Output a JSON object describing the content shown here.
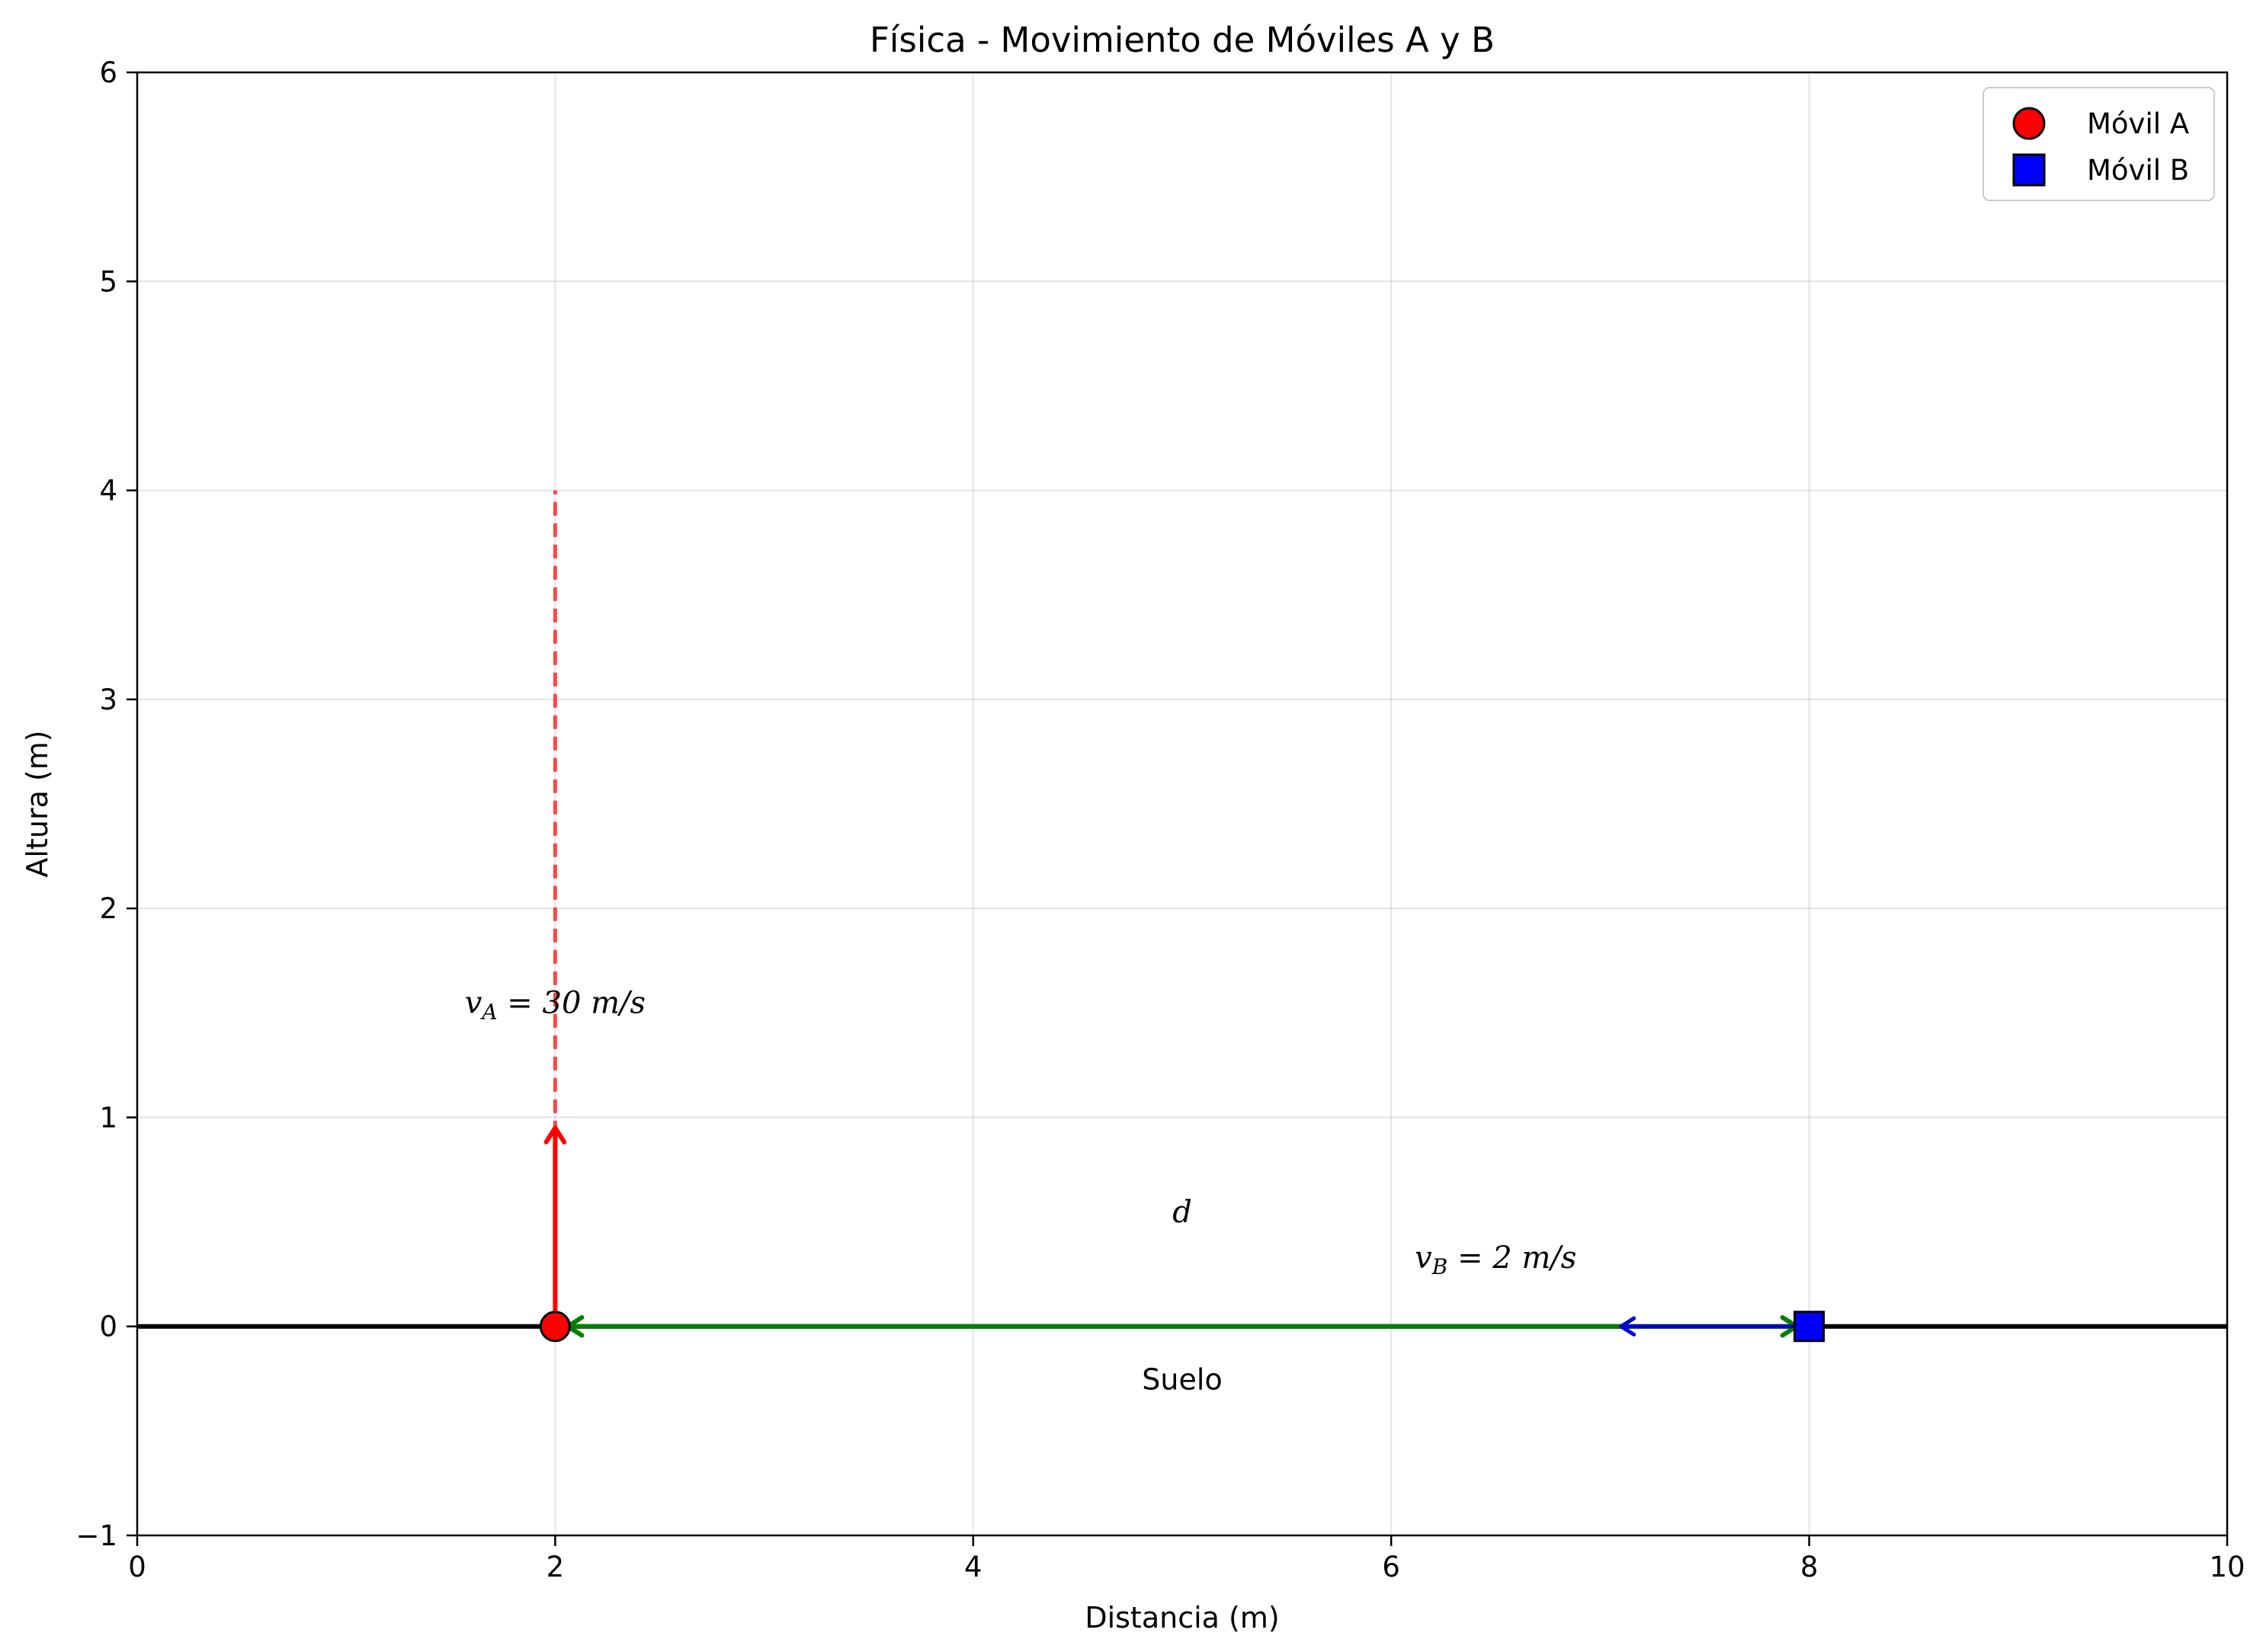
{
  "chart_data": {
    "type": "scatter",
    "title": "Física - Movimiento de Móviles A y B",
    "xlabel": "Distancia (m)",
    "ylabel": "Altura (m)",
    "xlim": [
      0,
      10
    ],
    "ylim": [
      -1,
      6
    ],
    "xticks": [
      0,
      2,
      4,
      6,
      8,
      10
    ],
    "yticks": [
      -1,
      0,
      1,
      2,
      3,
      4,
      5,
      6
    ],
    "xtick_labels": [
      "0",
      "2",
      "4",
      "6",
      "8",
      "10"
    ],
    "ytick_labels": [
      "−1",
      "0",
      "1",
      "2",
      "3",
      "4",
      "5",
      "6"
    ],
    "grid": true,
    "legend_position": "top-right",
    "series": [
      {
        "name": "Móvil A",
        "marker": "circle",
        "color": "#ff0000",
        "x": [
          2
        ],
        "y": [
          0
        ]
      },
      {
        "name": "Móvil B",
        "marker": "square",
        "color": "#0000ff",
        "x": [
          8
        ],
        "y": [
          0
        ]
      }
    ],
    "ground": {
      "x": [
        0,
        10
      ],
      "y": [
        0,
        0
      ],
      "color": "#000000",
      "label": "Suelo",
      "label_at": [
        5,
        -0.25
      ]
    },
    "trajectory_A": {
      "x": [
        2,
        2
      ],
      "y": [
        0,
        4
      ],
      "style": "dashed",
      "color": "#ff3333"
    },
    "velocity_A": {
      "from": [
        2,
        0
      ],
      "to": [
        2,
        0.95
      ],
      "color": "#ff0000"
    },
    "velocity_B": {
      "from": [
        8,
        0
      ],
      "to": [
        7.1,
        0
      ],
      "color": "#0000cc"
    },
    "distance": {
      "from": [
        2,
        0
      ],
      "to": [
        8,
        0
      ],
      "color": "#008000",
      "label": "d",
      "label_at": [
        5,
        0.55
      ]
    },
    "annotations": [
      {
        "id": "vA",
        "symbol": "v",
        "sub": "A",
        "rest": " = 30 m/s",
        "at": [
          2,
          1.55
        ]
      },
      {
        "id": "vB",
        "symbol": "v",
        "sub": "B",
        "rest": " = 2 m/s",
        "at": [
          6.5,
          0.33
        ]
      }
    ]
  }
}
